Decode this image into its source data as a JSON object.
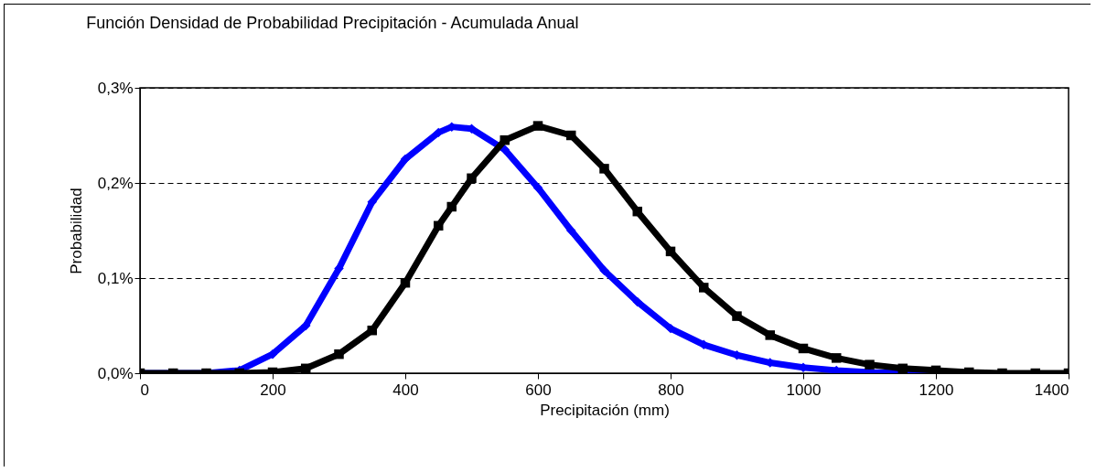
{
  "chart_data": {
    "type": "line",
    "title": "Función Densidad de Probabilidad Precipitación - Acumulada Anual",
    "xlabel": "Precipitación (mm)",
    "ylabel": "Probabilidad",
    "x": [
      0,
      50,
      100,
      150,
      200,
      250,
      300,
      350,
      400,
      450,
      470,
      500,
      550,
      600,
      650,
      700,
      750,
      800,
      850,
      900,
      950,
      1000,
      1050,
      1100,
      1150,
      1200,
      1250,
      1300,
      1350,
      1400
    ],
    "series": [
      {
        "color": "#0000ff",
        "marker": "diamond",
        "values": [
          0,
          0,
          0,
          0.003,
          0.02,
          0.05,
          0.11,
          0.18,
          0.225,
          0.253,
          0.259,
          0.257,
          0.235,
          0.195,
          0.15,
          0.108,
          0.075,
          0.047,
          0.03,
          0.019,
          0.011,
          0.006,
          0.003,
          0.001,
          0,
          0,
          0,
          null,
          null,
          null
        ]
      },
      {
        "color": "#000000",
        "marker": "square",
        "values": [
          0,
          0,
          0,
          0,
          0.001,
          0.005,
          0.02,
          0.045,
          0.095,
          0.155,
          0.175,
          0.205,
          0.245,
          0.26,
          0.25,
          0.215,
          0.17,
          0.128,
          0.09,
          0.06,
          0.04,
          0.026,
          0.016,
          0.009,
          0.005,
          0.003,
          0.001,
          0,
          0,
          0
        ]
      }
    ],
    "xlim": [
      0,
      1400
    ],
    "xticks": [
      0,
      200,
      400,
      600,
      800,
      1000,
      1200,
      1400
    ],
    "ylim": [
      0,
      0.3
    ],
    "yticks": [
      {
        "value": 0,
        "label": "0,0%"
      },
      {
        "value": 0.1,
        "label": "0,1%"
      },
      {
        "value": 0.2,
        "label": "0,2%"
      },
      {
        "value": 0.3,
        "label": "0,3%"
      }
    ],
    "grid": "y",
    "line_style": "solid"
  }
}
